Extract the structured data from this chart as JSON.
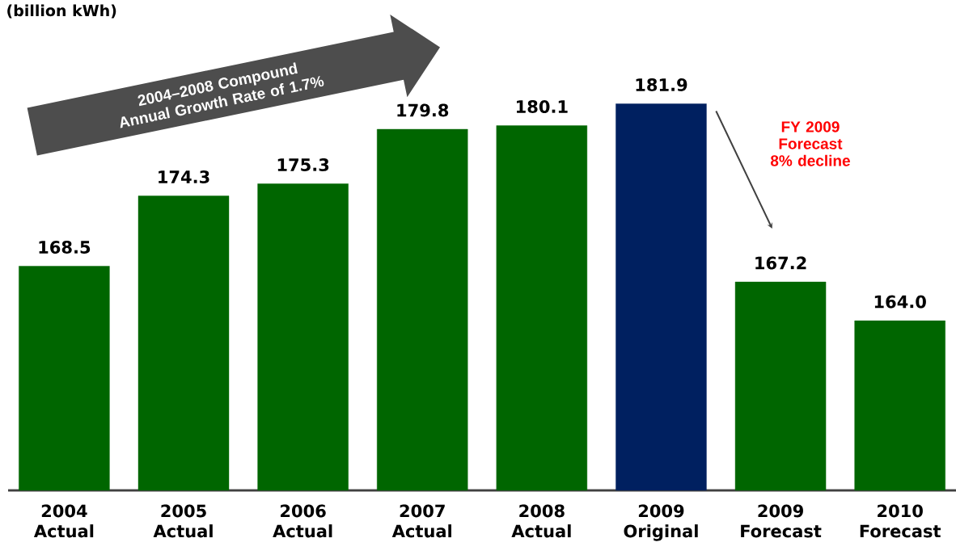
{
  "chart_data": {
    "type": "bar",
    "categories": [
      "2004 Actual",
      "2005 Actual",
      "2006 Actual",
      "2007 Actual",
      "2008 Actual",
      "2009 Original",
      "2009 Forecast",
      "2010 Forecast"
    ],
    "values": [
      168.5,
      174.3,
      175.3,
      179.8,
      180.1,
      181.9,
      167.2,
      164.0
    ],
    "colors": [
      "#006600",
      "#006600",
      "#006600",
      "#006600",
      "#006600",
      "#002060",
      "#006600",
      "#006600"
    ],
    "value_labels": [
      "168.5",
      "174.3",
      "175.3",
      "179.8",
      "180.1",
      "181.9",
      "167.2",
      "164.0"
    ],
    "ylim": [
      150,
      181.9
    ],
    "tick_labels": "x",
    "annotations": [
      "(billion kWh)",
      "2004–2008 Compound Annual Growth Rate of 1.7%",
      "FY 2009 Forecast 8% decline"
    ]
  }
}
